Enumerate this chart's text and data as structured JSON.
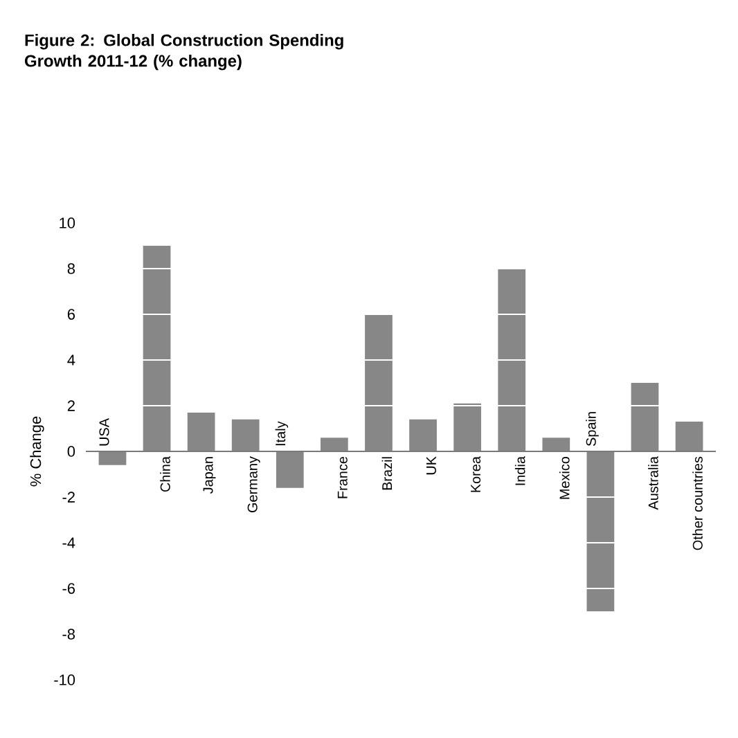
{
  "chart_data": {
    "type": "bar",
    "title": "Figure 2: Global Construction Spending Growth 2011-12 (% change)",
    "ylabel": "% Change",
    "categories": [
      "USA",
      "China",
      "Japan",
      "Germany",
      "Italy",
      "France",
      "Brazil",
      "UK",
      "Korea",
      "India",
      "Mexico",
      "Spain",
      "Australia",
      "Other countries"
    ],
    "values": [
      -0.6,
      9.0,
      1.7,
      1.4,
      -1.6,
      0.6,
      6.0,
      1.4,
      2.1,
      8.0,
      0.6,
      -7.0,
      3.0,
      1.3
    ],
    "color": "#878787",
    "ylim": [
      -10,
      10
    ],
    "yticks": [
      -10,
      -8,
      -6,
      -4,
      -2,
      0,
      2,
      4,
      6,
      8,
      10
    ],
    "grid": "y"
  }
}
